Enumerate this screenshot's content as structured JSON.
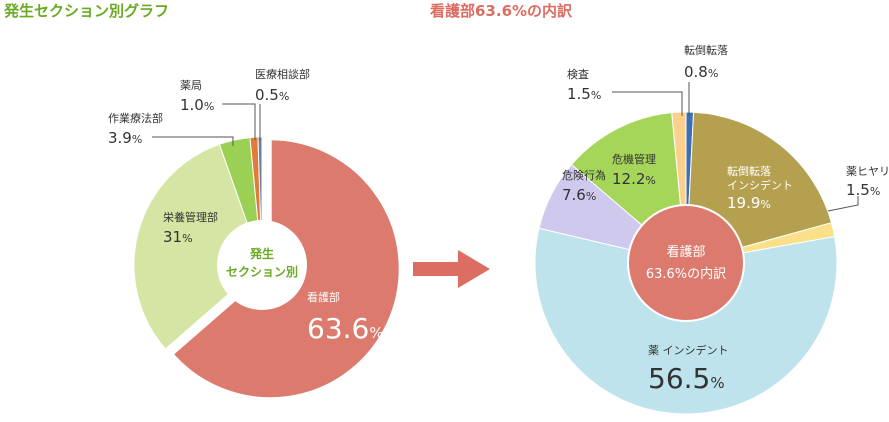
{
  "titles": {
    "left": "発生セクション別グラフ",
    "right": "看護部63.6%の内訳"
  },
  "colors": {
    "title_left": "#6aaa24",
    "title_right": "#dc6d63",
    "arrow": "#dc6d63"
  },
  "center_labels": {
    "left_line1": "発生",
    "left_line2": "セクション別",
    "right_line1": "看護部",
    "right_line2": "63.6%の内訳"
  },
  "chart_data": [
    {
      "type": "pie",
      "title": "発生セクション別グラフ",
      "center_label": "発生 セクション別",
      "exploded_slice": "看護部",
      "series": [
        {
          "name": "看護部",
          "value": 63.6,
          "display": "63.6",
          "color": "#dc7a6e"
        },
        {
          "name": "栄養管理部",
          "value": 31,
          "display": "31",
          "color": "#d5e6a4"
        },
        {
          "name": "作業療法部",
          "value": 3.9,
          "display": "3.9",
          "color": "#9ad155"
        },
        {
          "name": "薬局",
          "value": 1.0,
          "display": "1.0",
          "color": "#e07b3c"
        },
        {
          "name": "医療相談部",
          "value": 0.5,
          "display": "0.5",
          "color": "#6f7f9a"
        }
      ]
    },
    {
      "type": "pie",
      "title": "看護部63.6%の内訳",
      "center_label": "看護部 63.6%の内訳",
      "series": [
        {
          "name": "転倒転落",
          "value": 0.8,
          "display": "0.8",
          "color": "#3d6fb5"
        },
        {
          "name": "転倒転落インシデント",
          "value": 19.9,
          "display": "19.9",
          "color": "#b5a04f"
        },
        {
          "name": "薬ヒヤリ",
          "value": 1.5,
          "display": "1.5",
          "color": "#fbe08a"
        },
        {
          "name": "薬 インシデント",
          "value": 56.5,
          "display": "56.5",
          "color": "#bfe3ec"
        },
        {
          "name": "危険行為",
          "value": 7.6,
          "display": "7.6",
          "color": "#d0c9ee"
        },
        {
          "name": "危機管理",
          "value": 12.2,
          "display": "12.2",
          "color": "#a5d65a"
        },
        {
          "name": "検査",
          "value": 1.5,
          "display": "1.5",
          "color": "#fbd08c"
        }
      ]
    }
  ]
}
